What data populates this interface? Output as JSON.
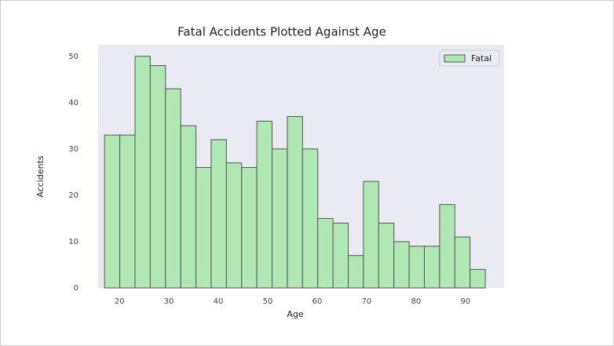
{
  "chart_data": {
    "type": "histogram",
    "title": "Fatal Accidents Plotted Against Age",
    "x_label": "Age",
    "y_label": "Accidents",
    "bins": [
      17,
      20.08,
      23.16,
      26.24,
      29.32,
      32.4,
      35.48,
      38.56,
      41.64,
      44.72,
      47.8,
      50.88,
      53.96,
      57.04,
      60.12,
      63.2,
      66.28,
      69.36,
      72.44,
      75.52,
      78.6,
      81.68,
      84.76,
      87.84,
      90.92,
      94
    ],
    "series": [
      {
        "name": "Fatal",
        "color": "#b0e8b4",
        "values": [
          33,
          33,
          50,
          48,
          43,
          35,
          26,
          32,
          27,
          26,
          36,
          30,
          37,
          30,
          15,
          14,
          7,
          23,
          14,
          10,
          9,
          9,
          18,
          11,
          4
        ]
      }
    ],
    "xlim": [
      15.7,
      97.8
    ],
    "ylim": [
      0,
      52.5
    ],
    "xticks": [
      20,
      30,
      40,
      50,
      60,
      70,
      80,
      90
    ],
    "yticks": [
      0,
      10,
      20,
      30,
      40,
      50
    ],
    "grid": false,
    "legend": "upper right"
  }
}
